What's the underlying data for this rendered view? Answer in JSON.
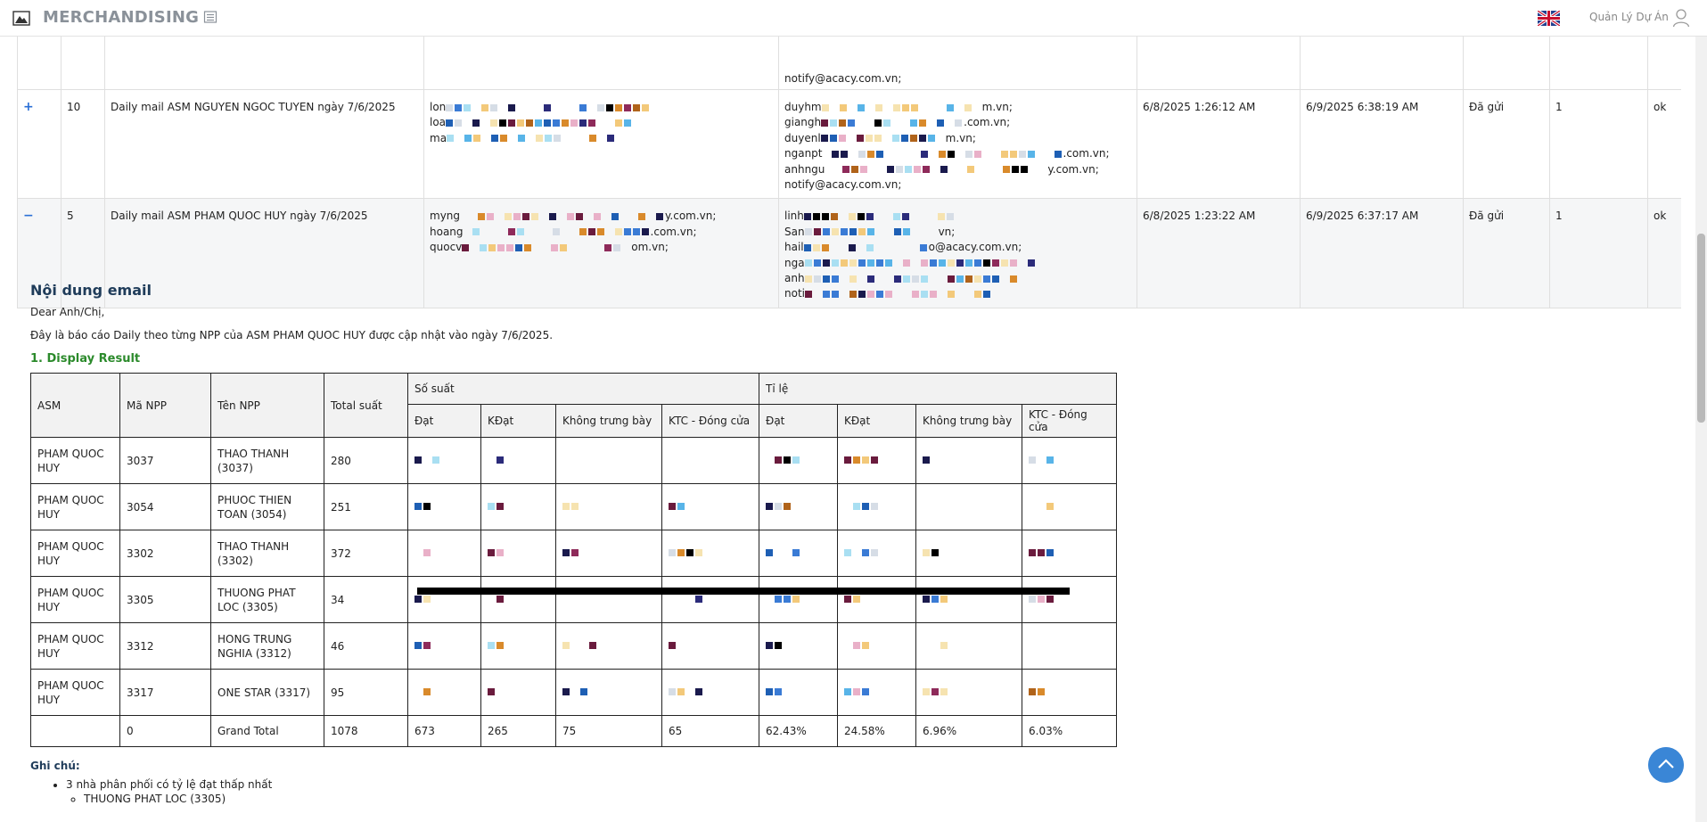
{
  "app": {
    "title": "MERCHANDISING",
    "project_label": "Quản Lý Dự Án"
  },
  "mail_rows": [
    {
      "expander": "",
      "id": "",
      "subject": "",
      "from": [],
      "to": [
        "notify@acacy.com.vn;"
      ],
      "sent_at": "",
      "updated_at": "",
      "status": "",
      "count": "",
      "result": ""
    },
    {
      "expander": "+",
      "id": "10",
      "subject": "Daily mail ASM NGUYEN NGOC TUYEN ngày 7/6/2025",
      "from": [
        "lon",
        "loa",
        "ma"
      ],
      "to": [
        "duyhm",
        "giangh",
        "duyenl",
        "nganpt",
        "anhngu",
        "notify@acacy.com.vn;"
      ],
      "to_tail": [
        "m.vn;",
        ".com.vn;",
        "m.vn;",
        ".com.vn;",
        "y.com.vn;",
        ""
      ],
      "sent_at": "6/8/2025 1:26:12 AM",
      "updated_at": "6/9/2025 6:38:19 AM",
      "status": "Đã gửi",
      "count": "1",
      "result": "ok"
    },
    {
      "expander": "−",
      "id": "5",
      "subject": "Daily mail ASM PHAM QUOC HUY ngày 7/6/2025",
      "from": [
        "myng",
        "hoang",
        "quocv"
      ],
      "from_tail": [
        "y.com.vn;",
        ".com.vn;",
        "om.vn;"
      ],
      "to": [
        "linh",
        "San",
        "hail",
        "nga",
        "anh",
        "noti"
      ],
      "to_tail": [
        "",
        "vn;",
        "o@acacy.com.vn;",
        "",
        "",
        ""
      ],
      "sent_at": "6/8/2025 1:23:22 AM",
      "updated_at": "6/9/2025 6:37:17 AM",
      "status": "Đã gửi",
      "count": "1",
      "result": "ok"
    }
  ],
  "email": {
    "title": "Nội dung email",
    "greeting": "Dear Anh/Chị,",
    "intro": "Đây là báo cáo Daily theo từng NPP của ASM PHAM QUOC HUY được cập nhật vào ngày 7/6/2025.",
    "section1": "1. Display Result",
    "table": {
      "headers": {
        "asm": "ASM",
        "ma_npp": "Mã NPP",
        "ten_npp": "Tên NPP",
        "total": "Total suất",
        "so_suat": "Số suất",
        "ti_le": "Tỉ lệ"
      },
      "sub_headers": [
        "Đạt",
        "KĐạt",
        "Không trưng bày",
        "KTC - Đóng cửa",
        "Đạt",
        "KĐạt",
        "Không trưng bày",
        "KTC - Đóng cửa"
      ],
      "rows": [
        {
          "asm": "PHAM QUOC HUY",
          "ma": "3037",
          "ten": "THAO THANH (3037)",
          "total": "280"
        },
        {
          "asm": "PHAM QUOC HUY",
          "ma": "3054",
          "ten": "PHUOC THIEN TOAN (3054)",
          "total": "251"
        },
        {
          "asm": "PHAM QUOC HUY",
          "ma": "3302",
          "ten": "THAO THANH (3302)",
          "total": "372"
        },
        {
          "asm": "PHAM QUOC HUY",
          "ma": "3305",
          "ten": "THUONG PHAT LOC (3305)",
          "total": "34"
        },
        {
          "asm": "PHAM QUOC HUY",
          "ma": "3312",
          "ten": "HONG TRUNG NGHIA (3312)",
          "total": "46"
        },
        {
          "asm": "PHAM QUOC HUY",
          "ma": "3317",
          "ten": "ONE STAR (3317)",
          "total": "95"
        }
      ],
      "total_row": {
        "asm": "",
        "ma": "0",
        "ten": "Grand Total",
        "total": "1078",
        "dat": "673",
        "kdat": "265",
        "ktb": "75",
        "ktc": "65",
        "r_dat": "62.43%",
        "r_kdat": "24.58%",
        "r_ktb": "6.96%",
        "r_ktc": "6.03%"
      }
    },
    "notes_title": "Ghi chú:",
    "notes": [
      {
        "text": "3 nhà phân phối có tỷ lệ đạt thấp nhất",
        "children": [
          "THUONG PHAT LOC (3305)"
        ]
      }
    ]
  },
  "colors": {
    "accent": "#3a86d6",
    "header_text": "#8a9199",
    "section_green": "#2b8a2b",
    "title_navy": "#1f3c5a"
  },
  "icons": {
    "logo": "app-logo-icon",
    "menu": "menu-toggle-icon",
    "flag": "uk-flag-icon",
    "user": "user-icon",
    "scroll_top": "chevron-up-icon"
  }
}
